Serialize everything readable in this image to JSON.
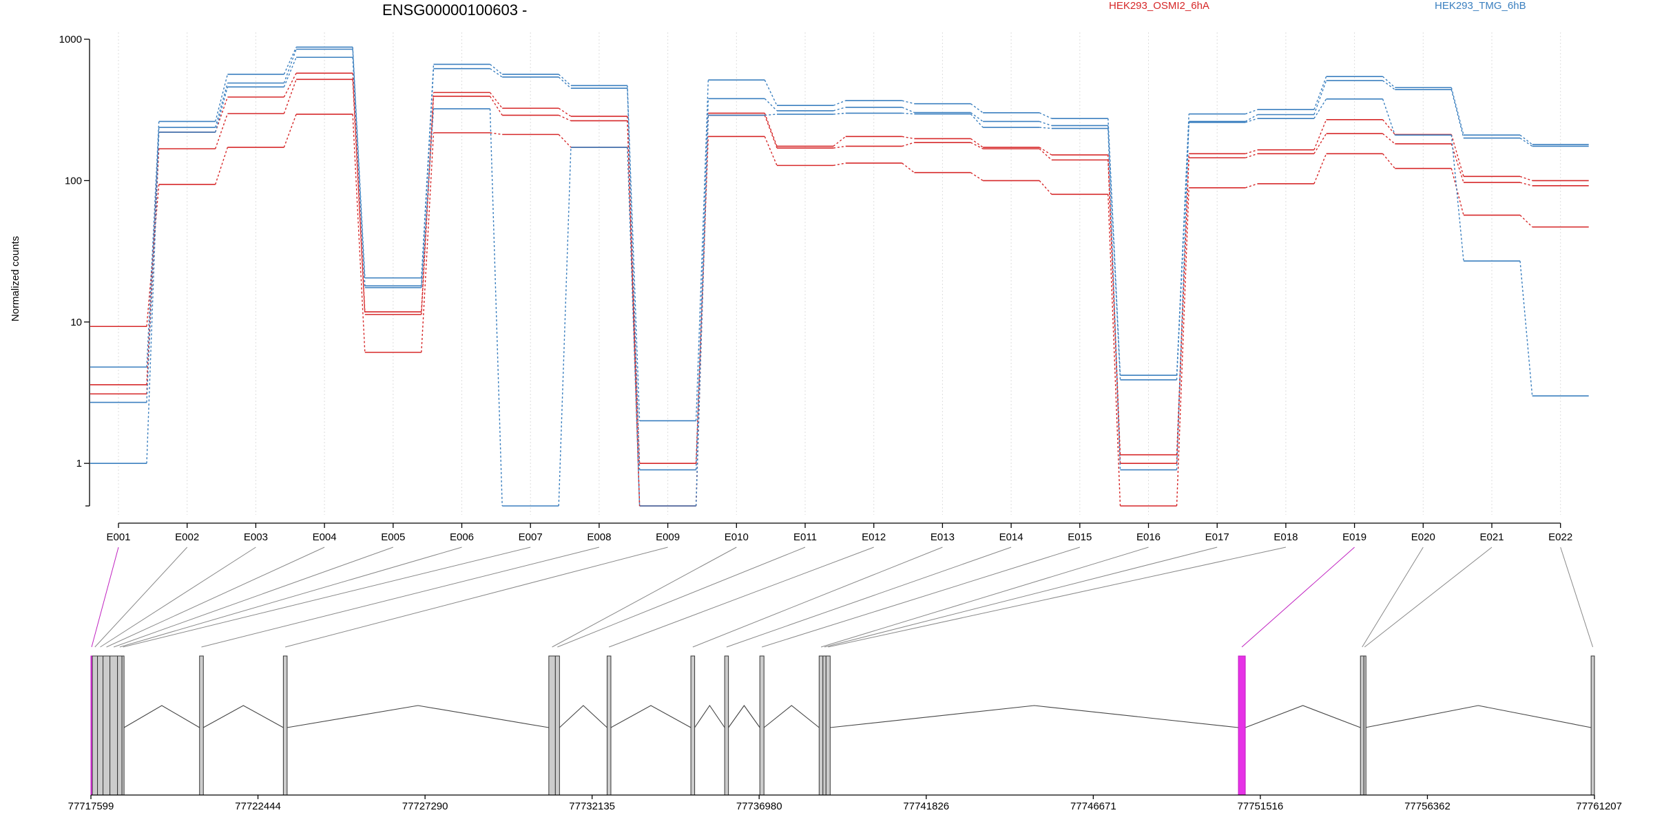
{
  "chart_data": {
    "type": "line",
    "title": "ENSG00000100603 -",
    "ylabel": "Normalized counts",
    "xlabel": "",
    "y_scale": "log",
    "ylim": [
      0.5,
      1000
    ],
    "y_ticks": [
      1,
      10,
      100,
      1000
    ],
    "y_tick_labels": [
      "1",
      "10",
      "100",
      "1000"
    ],
    "grid": "vertical dotted lines at exon positions",
    "categories": [
      "E001",
      "E002",
      "E003",
      "E004",
      "E005",
      "E006",
      "E007",
      "E008",
      "E009",
      "E010",
      "E011",
      "E012",
      "E013",
      "E014",
      "E015",
      "E016",
      "E017",
      "E018",
      "E019",
      "E020",
      "E021",
      "E022"
    ],
    "legend": [
      {
        "label": "HEK293_OSMI2_6hA",
        "color": "#d62728",
        "placement": "top-center"
      },
      {
        "label": "HEK293_TMG_6hB",
        "color": "#3a7fbf",
        "placement": "top-right"
      }
    ],
    "series": [
      {
        "group": "OSMI2",
        "color": "#d62728",
        "values": [
          9.3,
          94,
          172,
          295,
          6.1,
          218,
          212,
          172,
          1.0,
          205,
          128,
          133,
          114,
          100,
          80,
          0.5,
          89,
          95,
          155,
          122,
          57,
          47
        ]
      },
      {
        "group": "OSMI2",
        "color": "#d62728",
        "values": [
          3.1,
          168,
          298,
          520,
          11.3,
          395,
          290,
          265,
          0.5,
          290,
          170,
          175,
          186,
          168,
          140,
          1.0,
          145,
          155,
          215,
          182,
          97,
          92
        ]
      },
      {
        "group": "OSMI2",
        "color": "#d62728",
        "values": [
          3.6,
          220,
          390,
          575,
          11.8,
          420,
          325,
          285,
          0.5,
          300,
          175,
          205,
          198,
          172,
          152,
          1.15,
          155,
          165,
          270,
          212,
          107,
          100
        ]
      },
      {
        "group": "TMG",
        "color": "#3a7fbf",
        "values": [
          1.0,
          220,
          460,
          745,
          17.5,
          322,
          0.5,
          172,
          0.5,
          290,
          295,
          300,
          296,
          238,
          234,
          0.9,
          258,
          275,
          378,
          210,
          27,
          3.0
        ]
      },
      {
        "group": "TMG",
        "color": "#3a7fbf",
        "values": [
          2.7,
          238,
          490,
          850,
          18.0,
          620,
          540,
          450,
          0.9,
          380,
          312,
          330,
          303,
          262,
          245,
          3.9,
          262,
          293,
          510,
          440,
          200,
          175
        ]
      },
      {
        "group": "TMG",
        "color": "#3a7fbf",
        "values": [
          4.8,
          262,
          565,
          880,
          20.5,
          665,
          565,
          470,
          2.0,
          515,
          340,
          368,
          350,
          302,
          275,
          4.2,
          296,
          318,
          545,
          455,
          210,
          180
        ]
      }
    ],
    "gene_model": {
      "coord_ticks": [
        "77717599",
        "77722444",
        "77727290",
        "77732135",
        "77736980",
        "77741826",
        "77746671",
        "77751516",
        "77756362",
        "77761207"
      ],
      "exons": [
        {
          "id": "E001",
          "start": 77717599,
          "end": 77717640,
          "highlight": true
        },
        {
          "id": "E002",
          "start": 77717640,
          "end": 77717790,
          "highlight": false
        },
        {
          "id": "E003",
          "start": 77717790,
          "end": 77717950,
          "highlight": false
        },
        {
          "id": "E004",
          "start": 77717950,
          "end": 77718150,
          "highlight": false
        },
        {
          "id": "E005",
          "start": 77718150,
          "end": 77718370,
          "highlight": false
        },
        {
          "id": "E006",
          "start": 77718370,
          "end": 77718500,
          "highlight": false
        },
        {
          "id": "E007",
          "start": 77718500,
          "end": 77718560,
          "highlight": false
        },
        {
          "id": "E008",
          "start": 77720750,
          "end": 77720860,
          "highlight": false
        },
        {
          "id": "E009",
          "start": 77723180,
          "end": 77723290,
          "highlight": false
        },
        {
          "id": "E010",
          "start": 77730880,
          "end": 77731070,
          "highlight": false
        },
        {
          "id": "E011",
          "start": 77731070,
          "end": 77731190,
          "highlight": false
        },
        {
          "id": "E012",
          "start": 77732570,
          "end": 77732680,
          "highlight": false
        },
        {
          "id": "E013",
          "start": 77735000,
          "end": 77735110,
          "highlight": false
        },
        {
          "id": "E014",
          "start": 77735980,
          "end": 77736090,
          "highlight": false
        },
        {
          "id": "E015",
          "start": 77737000,
          "end": 77737120,
          "highlight": false
        },
        {
          "id": "E016",
          "start": 77738720,
          "end": 77738830,
          "highlight": false
        },
        {
          "id": "E017",
          "start": 77738830,
          "end": 77738920,
          "highlight": false
        },
        {
          "id": "E018",
          "start": 77738920,
          "end": 77739040,
          "highlight": false
        },
        {
          "id": "E019",
          "start": 77750880,
          "end": 77751080,
          "highlight": true
        },
        {
          "id": "E020",
          "start": 77754420,
          "end": 77754520,
          "highlight": false
        },
        {
          "id": "E021",
          "start": 77754520,
          "end": 77754560,
          "highlight": false
        },
        {
          "id": "E022",
          "start": 77761110,
          "end": 77761207,
          "highlight": false
        }
      ]
    }
  }
}
